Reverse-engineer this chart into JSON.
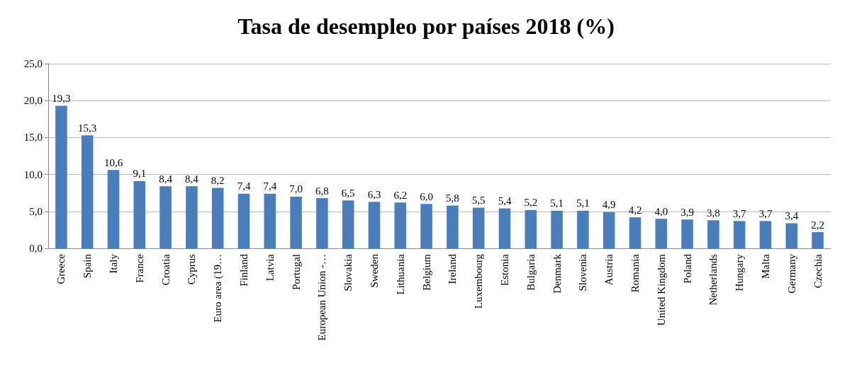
{
  "chart_data": {
    "type": "bar",
    "title": "Tasa de desempleo por países 2018 (%)",
    "categories": [
      "Greece",
      "Spain",
      "Italy",
      "France",
      "Croatia",
      "Cyprus",
      "Euro area (19…",
      "Finland",
      "Latvia",
      "Portugal",
      "European Union -…",
      "Slovakia",
      "Sweden",
      "Lithuania",
      "Belgium",
      "Ireland",
      "Luxembourg",
      "Estonia",
      "Bulgaria",
      "Denmark",
      "Slovenia",
      "Austria",
      "Romania",
      "United Kingdom",
      "Poland",
      "Netherlands",
      "Hungary",
      "Malta",
      "Germany",
      "Czechia"
    ],
    "values": [
      19.3,
      15.3,
      10.6,
      9.1,
      8.4,
      8.4,
      8.2,
      7.4,
      7.4,
      7.0,
      6.8,
      6.5,
      6.3,
      6.2,
      6.0,
      5.8,
      5.5,
      5.4,
      5.2,
      5.1,
      5.1,
      4.9,
      4.2,
      4.0,
      3.9,
      3.8,
      3.7,
      3.7,
      3.4,
      2.2
    ],
    "value_labels": [
      "19,3",
      "15,3",
      "10,6",
      "9,1",
      "8,4",
      "8,4",
      "8,2",
      "7,4",
      "7,4",
      "7,0",
      "6,8",
      "6,5",
      "6,3",
      "6,2",
      "6,0",
      "5,8",
      "5,5",
      "5,4",
      "5,2",
      "5,1",
      "5,1",
      "4,9",
      "4,2",
      "4,0",
      "3,9",
      "3,8",
      "3,7",
      "3,7",
      "3,4",
      "2,2"
    ],
    "color": "#4a7ebb",
    "ylim": [
      0,
      25
    ],
    "yticks": [
      {
        "value": 0,
        "label": "0,0"
      },
      {
        "value": 5,
        "label": "5,0"
      },
      {
        "value": 10,
        "label": "10,0"
      },
      {
        "value": 15,
        "label": "15,0"
      },
      {
        "value": 20,
        "label": "20,0"
      },
      {
        "value": 25,
        "label": "25,0"
      }
    ],
    "grid": "y"
  }
}
